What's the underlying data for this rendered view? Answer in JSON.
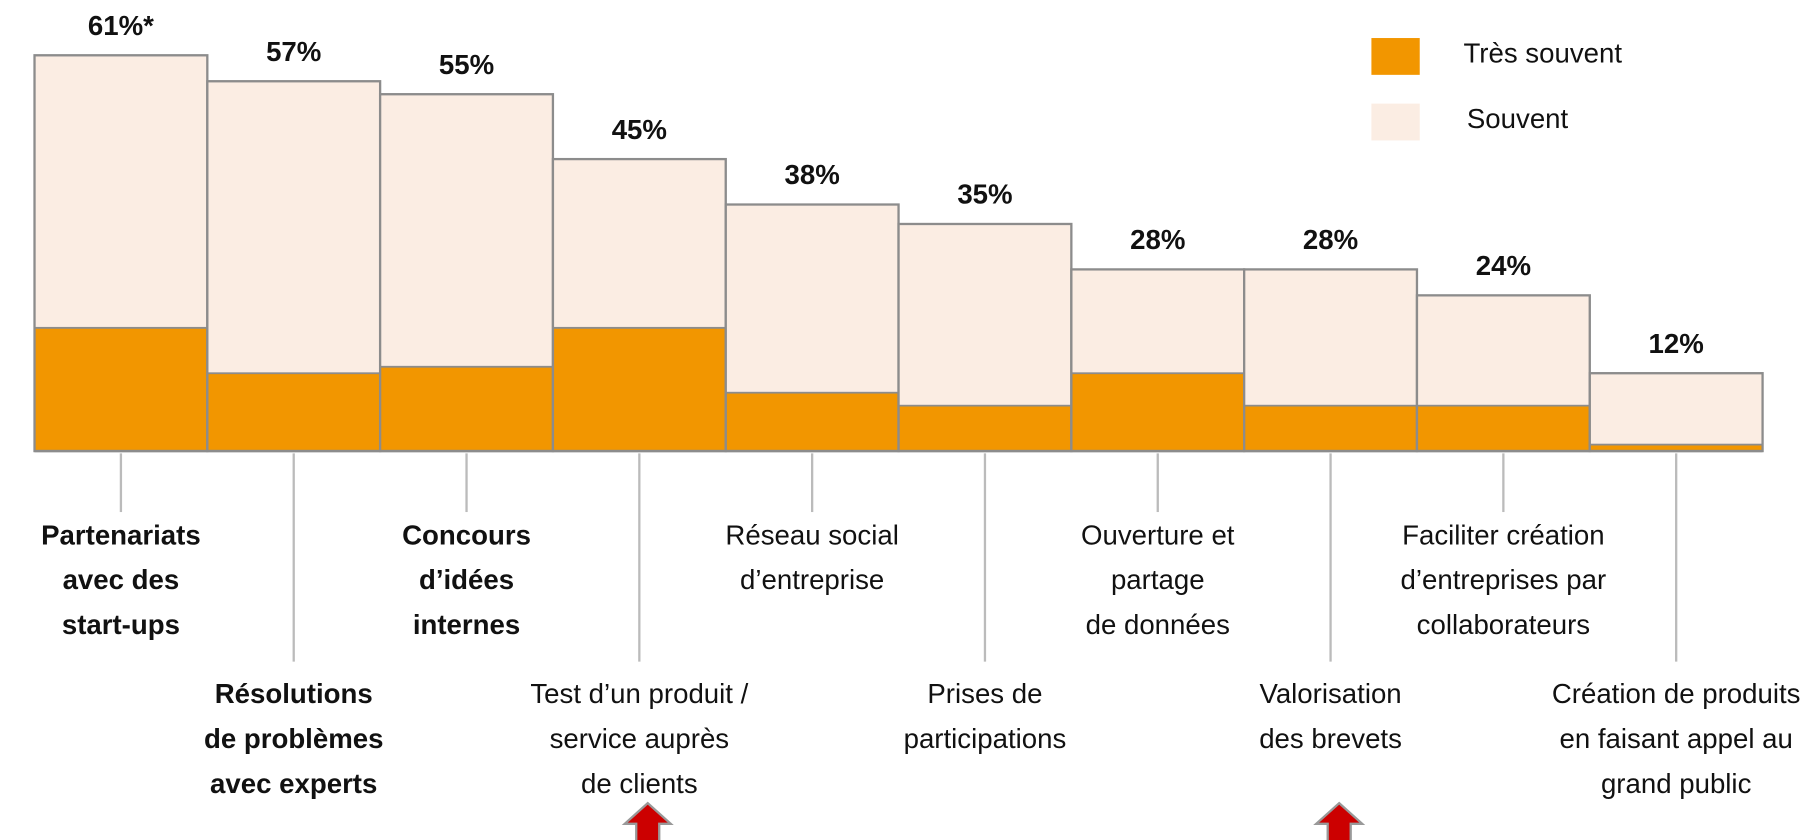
{
  "chart_data": {
    "type": "stacked_bar",
    "categories": [
      [
        "Partenariats",
        "avec des",
        "start-ups"
      ],
      [
        "Résolutions",
        "de problèmes",
        "avec experts"
      ],
      [
        "Concours",
        "d’idées",
        "internes"
      ],
      [
        "Test d’un produit  /",
        "service auprès",
        "de clients"
      ],
      [
        "Réseau social",
        "d’entreprise"
      ],
      [
        "Prises de",
        "participations"
      ],
      [
        "Ouverture et",
        "partage",
        "de  données"
      ],
      [
        "Valorisation",
        "des brevets"
      ],
      [
        "Faciliter création",
        "d’entreprises par",
        "collaborateurs"
      ],
      [
        "Création de produits",
        "en faisant appel au",
        "grand public"
      ]
    ],
    "series": [
      {
        "name": "Très souvent",
        "color": "#F29600",
        "values": [
          19,
          12,
          13,
          19,
          9,
          7,
          12,
          7,
          7,
          1
        ]
      },
      {
        "name": "Souvent",
        "color": "#FBEDE3",
        "values": [
          42,
          45,
          42,
          26,
          29,
          28,
          16,
          21,
          17,
          11
        ]
      }
    ],
    "totals": [
      61,
      57,
      55,
      45,
      38,
      35,
      28,
      28,
      24,
      12
    ],
    "total_labels": [
      "61%*",
      "57%",
      "55%",
      "45%",
      "38%",
      "35%",
      "28%",
      "28%",
      "24%",
      "12%"
    ],
    "ylim": [
      0,
      61
    ],
    "legend": "top-right"
  }
}
